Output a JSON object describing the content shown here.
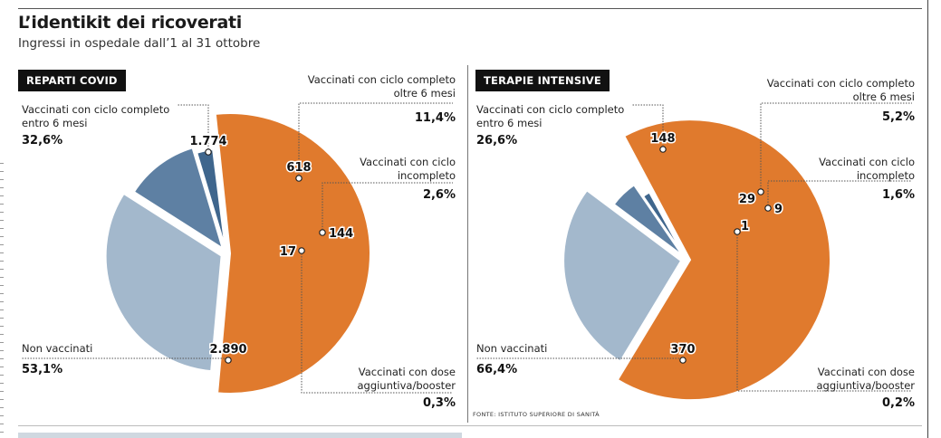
{
  "header": {
    "title": "L’identikit dei ricoverati",
    "subtitle": "Ingressi in ospedale dall’1 al 31 ottobre"
  },
  "source": "FONTE: ISTITUTO SUPERIORE DI SANITÀ",
  "colors": {
    "non_vaccinati": "#e07a2d",
    "entro_6_mesi": "#a3b8cc",
    "oltre_6_mesi": "#5e80a3",
    "incompleto": "#3f668d",
    "booster": "#1e3f63"
  },
  "panels": [
    {
      "tag": "REPARTI COVID",
      "labels": {
        "entro": "Vaccinati con ciclo completo\nentro 6 mesi",
        "entro_pct": "32,6%",
        "oltre": "Vaccinati con ciclo completo\noltre 6 mesi",
        "oltre_pct": "11,4%",
        "incompleto": "Vaccinati con ciclo\nincompleto",
        "incompleto_pct": "2,6%",
        "non": "Non vaccinati",
        "non_pct": "53,1%",
        "booster": "Vaccinati con dose\naggiuntiva/booster",
        "booster_pct": "0,3%"
      },
      "chart_data": {
        "type": "pie",
        "categories": [
          "Non vaccinati",
          "Vaccinati con ciclo completo entro 6 mesi",
          "Vaccinati con ciclo completo oltre 6 mesi",
          "Vaccinati con ciclo incompleto",
          "Vaccinati con dose aggiuntiva/booster"
        ],
        "values": [
          2890,
          1774,
          618,
          144,
          17
        ],
        "value_labels": [
          "2.890",
          "1.774",
          "618",
          "144",
          "17"
        ],
        "percent_labels": [
          "53,1%",
          "32,6%",
          "11,4%",
          "2,6%",
          "0,3%"
        ]
      }
    },
    {
      "tag": "TERAPIE INTENSIVE",
      "labels": {
        "entro": "Vaccinati con ciclo completo\nentro 6 mesi",
        "entro_pct": "26,6%",
        "oltre": "Vaccinati con ciclo completo\noltre 6 mesi",
        "oltre_pct": "5,2%",
        "incompleto": "Vaccinati con ciclo\nincompleto",
        "incompleto_pct": "1,6%",
        "non": "Non vaccinati",
        "non_pct": "66,4%",
        "booster": "Vaccinati con dose\naggiuntiva/booster",
        "booster_pct": "0,2%"
      },
      "chart_data": {
        "type": "pie",
        "categories": [
          "Non vaccinati",
          "Vaccinati con ciclo completo entro 6 mesi",
          "Vaccinati con ciclo completo oltre 6 mesi",
          "Vaccinati con ciclo incompleto",
          "Vaccinati con dose aggiuntiva/booster"
        ],
        "values": [
          370,
          148,
          29,
          9,
          1
        ],
        "value_labels": [
          "370",
          "148",
          "29",
          "9",
          "1"
        ],
        "percent_labels": [
          "66,4%",
          "26,6%",
          "5,2%",
          "1,6%",
          "0,2%"
        ]
      }
    }
  ]
}
